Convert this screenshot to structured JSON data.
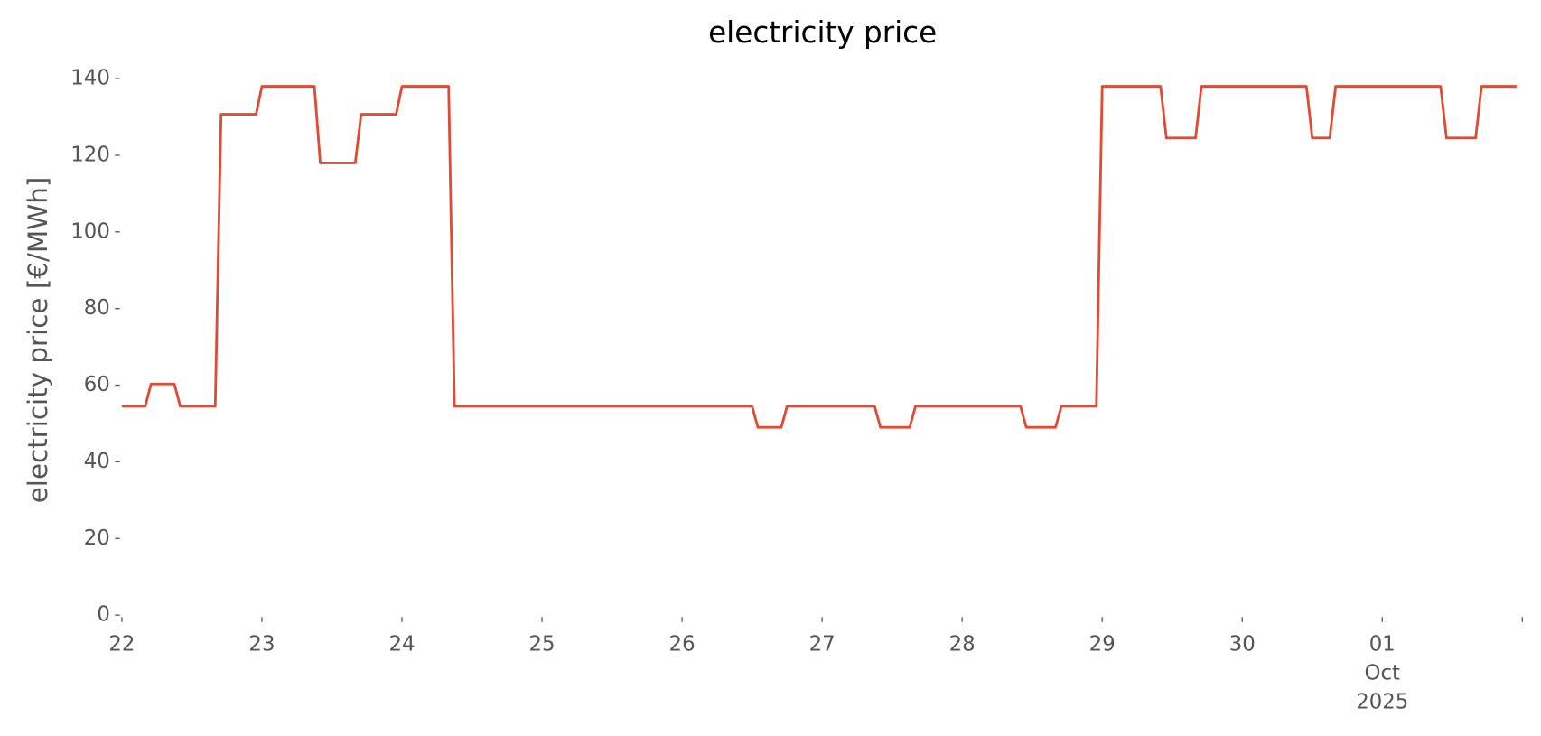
{
  "chart_data": {
    "type": "line",
    "title": "electricity price",
    "y_label": "electricity price [€/MWh]",
    "x": [
      "2025-09-22T00:00",
      "2025-09-22T04:00",
      "2025-09-22T05:00",
      "2025-09-22T09:00",
      "2025-09-22T10:00",
      "2025-09-22T16:00",
      "2025-09-22T17:00",
      "2025-09-22T23:00",
      "2025-09-23T00:00",
      "2025-09-23T09:00",
      "2025-09-23T10:00",
      "2025-09-23T16:00",
      "2025-09-23T17:00",
      "2025-09-23T23:00",
      "2025-09-24T00:00",
      "2025-09-24T08:00",
      "2025-09-24T09:00",
      "2025-09-26T12:00",
      "2025-09-26T13:00",
      "2025-09-26T17:00",
      "2025-09-26T18:00",
      "2025-09-27T09:00",
      "2025-09-27T10:00",
      "2025-09-27T15:00",
      "2025-09-27T16:00",
      "2025-09-28T10:00",
      "2025-09-28T11:00",
      "2025-09-28T16:00",
      "2025-09-28T17:00",
      "2025-09-28T23:00",
      "2025-09-29T00:00",
      "2025-09-29T10:00",
      "2025-09-29T11:00",
      "2025-09-29T16:00",
      "2025-09-29T17:00",
      "2025-09-30T11:00",
      "2025-09-30T12:00",
      "2025-09-30T15:00",
      "2025-09-30T16:00",
      "2025-10-01T10:00",
      "2025-10-01T11:00",
      "2025-10-01T16:00",
      "2025-10-01T17:00",
      "2025-10-01T23:00"
    ],
    "series": [
      {
        "name": "electricity price",
        "color": "#E24A33",
        "values": [
          54.5,
          54.5,
          60.3,
          60.3,
          54.5,
          54.5,
          130.7,
          130.7,
          138,
          138,
          118,
          118,
          130.7,
          130.7,
          138,
          138,
          54.5,
          54.5,
          49,
          49,
          54.5,
          54.5,
          49,
          49,
          54.5,
          54.5,
          49,
          49,
          54.5,
          54.5,
          138,
          138,
          124.5,
          124.5,
          138,
          138,
          124.5,
          124.5,
          138,
          138,
          124.5,
          124.5,
          138,
          138
        ]
      }
    ],
    "xlim": [
      "2025-09-22T00:00",
      "2025-10-02T00:00"
    ],
    "xticks": [
      {
        "value": "2025-09-22T00:00",
        "label": "22"
      },
      {
        "value": "2025-09-23T00:00",
        "label": "23"
      },
      {
        "value": "2025-09-24T00:00",
        "label": "24"
      },
      {
        "value": "2025-09-25T00:00",
        "label": "25"
      },
      {
        "value": "2025-09-26T00:00",
        "label": "26"
      },
      {
        "value": "2025-09-27T00:00",
        "label": "27"
      },
      {
        "value": "2025-09-28T00:00",
        "label": "28"
      },
      {
        "value": "2025-09-29T00:00",
        "label": "29"
      },
      {
        "value": "2025-09-30T00:00",
        "label": "30"
      },
      {
        "value": "2025-10-01T00:00",
        "label": "01\nOct\n2025"
      },
      {
        "value": "2025-10-02T00:00",
        "label": null
      }
    ],
    "ylim": [
      0,
      140
    ],
    "yticks": [
      0,
      20,
      40,
      60,
      80,
      100,
      120,
      140
    ],
    "grid": false
  }
}
